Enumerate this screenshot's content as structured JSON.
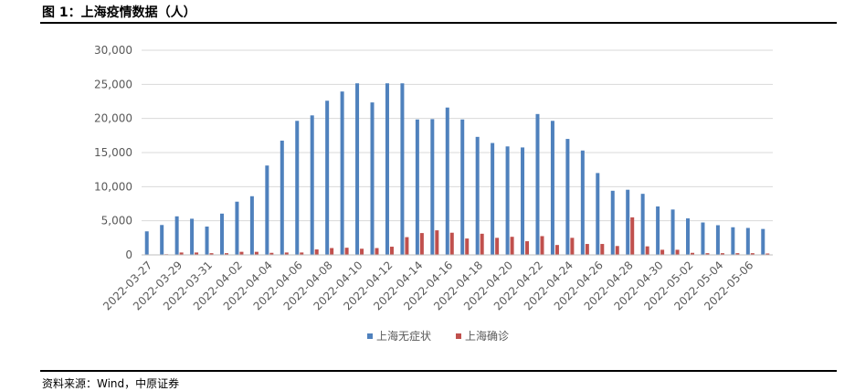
{
  "figure_title": "图 1：上海疫情数据（人）",
  "source_note": "资料来源：Wind，中原证券",
  "chart_data": {
    "type": "bar",
    "title": "",
    "xlabel": "",
    "ylabel": "",
    "ylim": [
      0,
      30000
    ],
    "yticks": [
      0,
      5000,
      10000,
      15000,
      20000,
      25000,
      30000
    ],
    "ytick_labels": [
      "0",
      "5,000",
      "10,000",
      "15,000",
      "20,000",
      "25,000",
      "30,000"
    ],
    "grid": true,
    "legend_position": "bottom",
    "categories": [
      "2022-03-27",
      "2022-03-28",
      "2022-03-29",
      "2022-03-30",
      "2022-03-31",
      "2022-04-01",
      "2022-04-02",
      "2022-04-03",
      "2022-04-04",
      "2022-04-05",
      "2022-04-06",
      "2022-04-07",
      "2022-04-08",
      "2022-04-09",
      "2022-04-10",
      "2022-04-11",
      "2022-04-12",
      "2022-04-13",
      "2022-04-14",
      "2022-04-15",
      "2022-04-16",
      "2022-04-17",
      "2022-04-18",
      "2022-04-19",
      "2022-04-20",
      "2022-04-21",
      "2022-04-22",
      "2022-04-23",
      "2022-04-24",
      "2022-04-25",
      "2022-04-26",
      "2022-04-27",
      "2022-04-28",
      "2022-04-29",
      "2022-04-30",
      "2022-05-01",
      "2022-05-02",
      "2022-05-03",
      "2022-05-04",
      "2022-05-05",
      "2022-05-06",
      "2022-05-07"
    ],
    "xtick_labels": [
      "2022-03-27",
      "2022-03-29",
      "2022-03-31",
      "2022-04-02",
      "2022-04-04",
      "2022-04-06",
      "2022-04-08",
      "2022-04-10",
      "2022-04-12",
      "2022-04-14",
      "2022-04-16",
      "2022-04-18",
      "2022-04-20",
      "2022-04-22",
      "2022-04-24",
      "2022-04-26",
      "2022-04-28",
      "2022-04-30",
      "2022-05-02",
      "2022-05-04",
      "2022-05-06"
    ],
    "series": [
      {
        "name": "上海无症状",
        "color": "#4F81BD",
        "values": [
          3450,
          4380,
          5650,
          5300,
          4150,
          6050,
          7800,
          8600,
          13100,
          16750,
          19650,
          20450,
          22600,
          23950,
          25150,
          22350,
          25150,
          25150,
          19850,
          19900,
          21600,
          19850,
          17300,
          16400,
          15900,
          15750,
          20650,
          19650,
          17000,
          15300,
          12000,
          9400,
          9550,
          8950,
          7100,
          6650,
          5350,
          4750,
          4350,
          4050,
          3950,
          3800
        ]
      },
      {
        "name": "上海确诊",
        "color": "#C0504D",
        "values": [
          50,
          100,
          350,
          350,
          250,
          250,
          450,
          450,
          300,
          350,
          350,
          800,
          1000,
          1050,
          900,
          1000,
          1200,
          2600,
          3200,
          3600,
          3250,
          2400,
          3100,
          2500,
          2650,
          2000,
          2750,
          1450,
          2500,
          1600,
          1600,
          1300,
          5500,
          1250,
          750,
          750,
          300,
          250,
          250,
          250,
          250,
          200
        ]
      }
    ]
  }
}
